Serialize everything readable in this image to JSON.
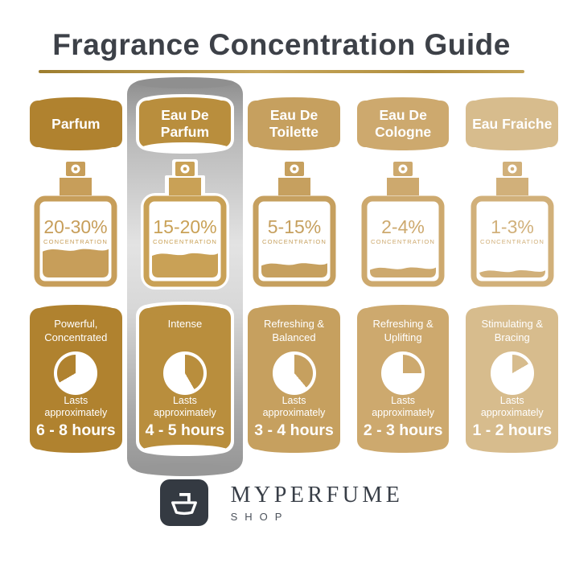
{
  "header": {
    "title": "Fragrance Concentration Guide",
    "underline_color": "#B5954A"
  },
  "labels": {
    "concentration": "CONCENTRATION",
    "lasts": "Lasts approximately"
  },
  "columns": [
    {
      "name": "Parfum",
      "concentration": "20-30%",
      "fill_percent": 40,
      "description": "Powerful, Concentrated",
      "duration": "6 - 8 hours",
      "clock_fill_degrees": {
        "from": 240,
        "to": 360
      },
      "color_main": "#B0822F",
      "color_bottle": "#C79E5A",
      "highlighted": false
    },
    {
      "name": "Eau De Parfum",
      "concentration": "15-20%",
      "fill_percent": 34,
      "description": "Intense",
      "duration": "4 - 5 hours",
      "clock_fill_degrees": {
        "from": 0,
        "to": 150
      },
      "color_main": "#B98E3D",
      "color_bottle": "#C9A156",
      "highlighted": true
    },
    {
      "name": "Eau De Toilette",
      "concentration": "5-15%",
      "fill_percent": 20,
      "description": "Refreshing & Balanced",
      "duration": "3 - 4 hours",
      "clock_fill_degrees": {
        "from": 0,
        "to": 140
      },
      "color_main": "#C6A05F",
      "color_bottle": "#C6A05F",
      "highlighted": false
    },
    {
      "name": "Eau De Cologne",
      "concentration": "2-4%",
      "fill_percent": 14,
      "description": "Refreshing & Uplifting",
      "duration": "2 - 3 hours",
      "clock_fill_degrees": {
        "from": 0,
        "to": 90
      },
      "color_main": "#CDA96E",
      "color_bottle": "#CDA96E",
      "highlighted": false
    },
    {
      "name": "Eau Fraiche",
      "concentration": "1-3%",
      "fill_percent": 10,
      "description": "Stimulating & Bracing",
      "duration": "1 - 2 hours",
      "clock_fill_degrees": {
        "from": 0,
        "to": 60
      },
      "color_main": "#D7BC8D",
      "color_bottle": "#D1B07A",
      "highlighted": false
    }
  ],
  "footer": {
    "brand": "MYPERFUME",
    "sub": "SHOP"
  },
  "colors": {
    "title_text": "#3D4148",
    "highlight_silver": "#9A9A9A",
    "footer_dark": "#343A42",
    "card_text": "#FFFFFF"
  }
}
